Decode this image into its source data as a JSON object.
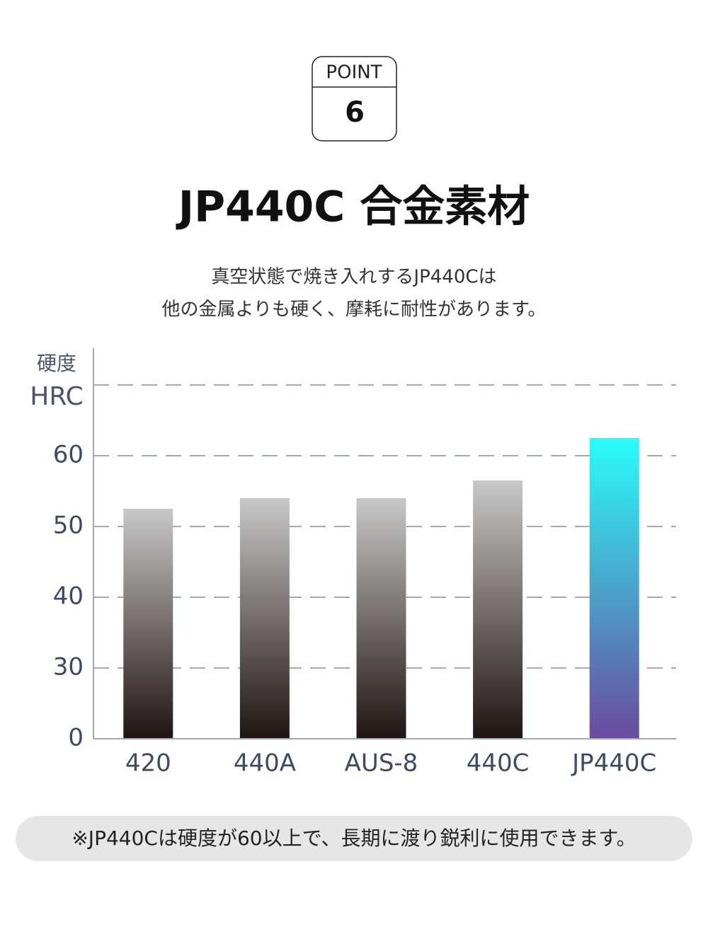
{
  "header": {
    "label": "POINT",
    "number": "6"
  },
  "chart_data": {
    "type": "bar",
    "title": "JP440C 合金素材",
    "subtitle": [
      "真空状態で焼き入れするJP440Cは",
      "他の金属よりも硬く、摩耗に耐性があります。"
    ],
    "ylabel": "硬度",
    "yunit": "HRC",
    "categories": [
      "420",
      "440A",
      "AUS-8",
      "440C",
      "JP440C"
    ],
    "values": [
      52.5,
      54,
      54,
      56.5,
      62.5
    ],
    "colors": [
      [
        "#c8c8c8",
        "#201412"
      ],
      [
        "#c8c8c8",
        "#201412"
      ],
      [
        "#c8c8c8",
        "#201412"
      ],
      [
        "#c8c8c8",
        "#201412"
      ],
      [
        "#2afcf9",
        "#6a4a9e"
      ]
    ],
    "ylim": [
      0,
      70
    ],
    "yticks": [
      0,
      30,
      40,
      50,
      60
    ],
    "broken_axis": true,
    "grid": true
  },
  "note": "※JP440Cは硬度が60以上で、長期に渡り鋭利に使用できます。"
}
